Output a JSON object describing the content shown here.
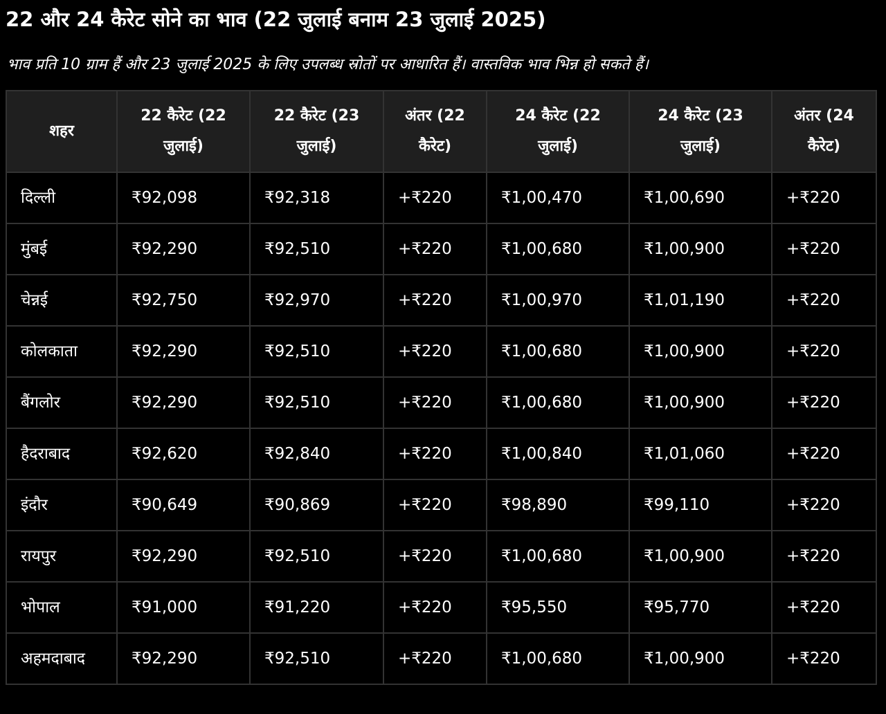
{
  "title": "22 और 24 कैरेट सोने का भाव (22 जुलाई बनाम 23 जुलाई 2025)",
  "subtitle": "भाव प्रति 10 ग्राम हैं और 23 जुलाई 2025 के लिए उपलब्ध स्रोतों पर आधारित हैं। वास्तविक भाव भिन्न हो सकते हैं।",
  "table": {
    "headers": [
      "शहर",
      "22 कैरेट (22 जुलाई)",
      "22 कैरेट (23 जुलाई)",
      "अंतर (22 कैरेट)",
      "24 कैरेट (22 जुलाई)",
      "24 कैरेट (23 जुलाई)",
      "अंतर (24 कैरेट)"
    ],
    "rows": [
      [
        "दिल्ली",
        "₹92,098",
        "₹92,318",
        "+₹220",
        "₹1,00,470",
        "₹1,00,690",
        "+₹220"
      ],
      [
        "मुंबई",
        "₹92,290",
        "₹92,510",
        "+₹220",
        "₹1,00,680",
        "₹1,00,900",
        "+₹220"
      ],
      [
        "चेन्नई",
        "₹92,750",
        "₹92,970",
        "+₹220",
        "₹1,00,970",
        "₹1,01,190",
        "+₹220"
      ],
      [
        "कोलकाता",
        "₹92,290",
        "₹92,510",
        "+₹220",
        "₹1,00,680",
        "₹1,00,900",
        "+₹220"
      ],
      [
        "बैंगलोर",
        "₹92,290",
        "₹92,510",
        "+₹220",
        "₹1,00,680",
        "₹1,00,900",
        "+₹220"
      ],
      [
        "हैदराबाद",
        "₹92,620",
        "₹92,840",
        "+₹220",
        "₹1,00,840",
        "₹1,01,060",
        "+₹220"
      ],
      [
        "इंदौर",
        "₹90,649",
        "₹90,869",
        "+₹220",
        "₹98,890",
        "₹99,110",
        "+₹220"
      ],
      [
        "रायपुर",
        "₹92,290",
        "₹92,510",
        "+₹220",
        "₹1,00,680",
        "₹1,00,900",
        "+₹220"
      ],
      [
        "भोपाल",
        "₹91,000",
        "₹91,220",
        "+₹220",
        "₹95,550",
        "₹95,770",
        "+₹220"
      ],
      [
        "अहमदाबाद",
        "₹92,290",
        "₹92,510",
        "+₹220",
        "₹1,00,680",
        "₹1,00,900",
        "+₹220"
      ]
    ]
  },
  "colors": {
    "background": "#000000",
    "header_background": "#1f1f1f",
    "border": "#333333",
    "text": "#ffffff"
  }
}
